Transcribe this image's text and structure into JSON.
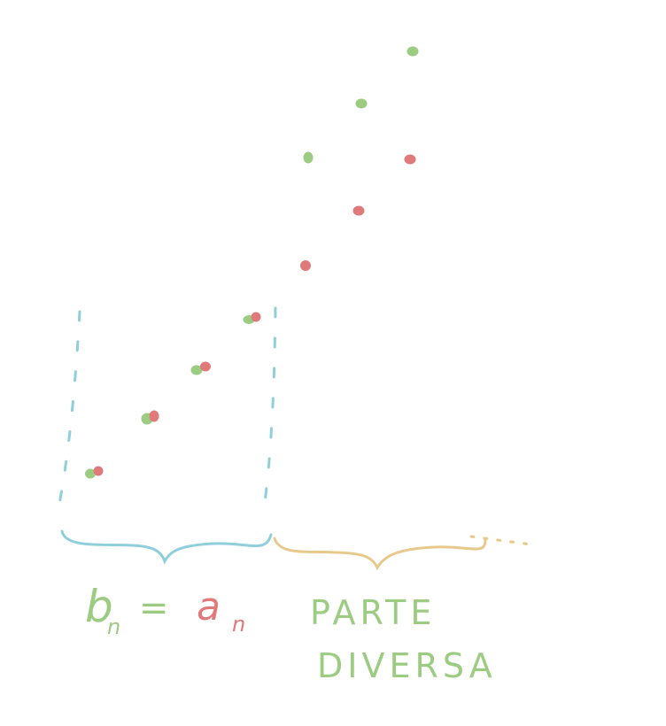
{
  "colors": {
    "green": "#9ccc82",
    "red": "#e07a7a",
    "blue": "#8fcfdc",
    "orange": "#e8c98c"
  },
  "labels": {
    "b": "b",
    "b_sub": "n",
    "equals": "=",
    "a": "a",
    "a_sub": "n",
    "parte": "PARTE",
    "diversa": "DIVERSA"
  },
  "sequences": {
    "common_terms": 4,
    "b_extra_terms": 3,
    "a_extra_terms": 3
  }
}
